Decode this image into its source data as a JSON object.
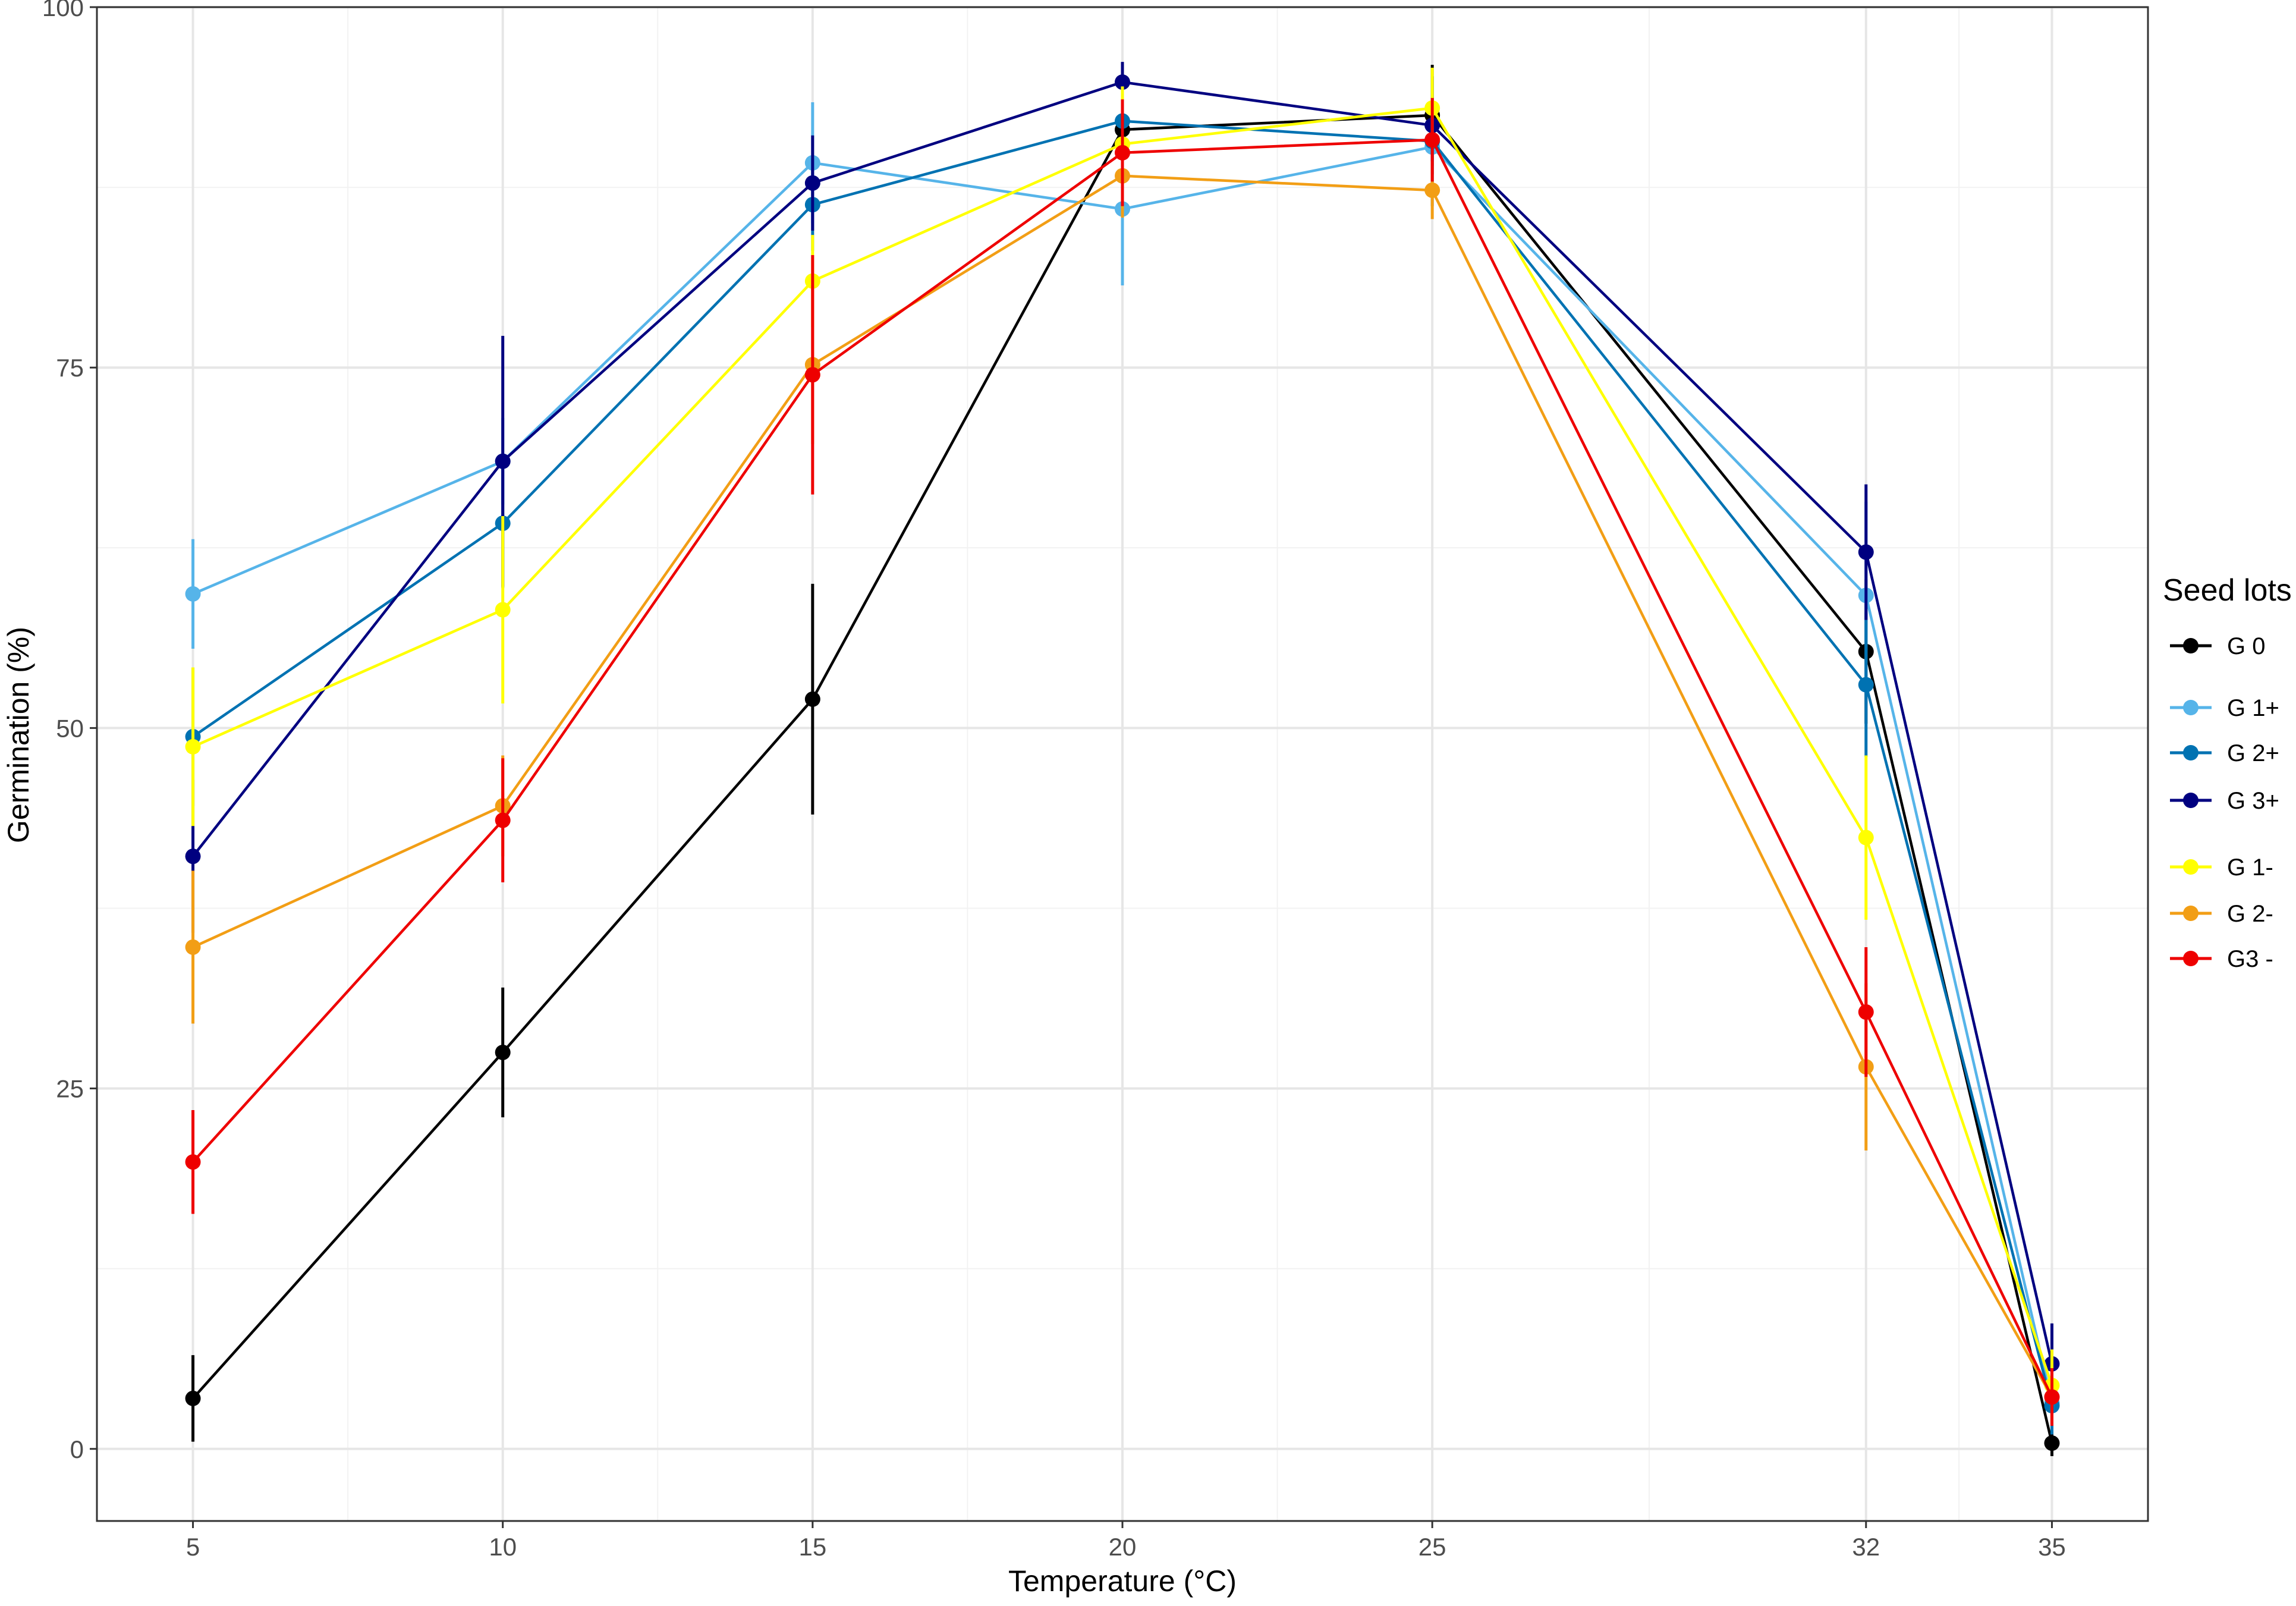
{
  "chart_data": {
    "type": "line",
    "title": "",
    "xlabel": "Temperature (°C)",
    "ylabel": "Germination (%)",
    "x": [
      5,
      10,
      15,
      20,
      25,
      32,
      35
    ],
    "x_ticks": [
      "5",
      "10",
      "15",
      "20",
      "25",
      "32",
      "35"
    ],
    "x_minor_ticks": [
      7.5,
      12.5,
      17.5,
      22.5,
      28.5,
      33.5
    ],
    "xlim": [
      3.45,
      36.55
    ],
    "y_ticks": [
      "0",
      "25",
      "50",
      "75",
      "100"
    ],
    "y_tick_values": [
      0,
      25,
      50,
      75,
      100
    ],
    "y_minor_ticks": [
      12.5,
      37.5,
      62.5,
      87.5
    ],
    "ylim": [
      -5,
      100
    ],
    "grid": true,
    "error_bars": true,
    "legend": {
      "title": "Seed lots",
      "position": "right",
      "groups": [
        [
          "G 0"
        ],
        [
          "G 1+",
          "G 2+",
          "G 3+"
        ],
        [
          "G 1-",
          "G 2-",
          "G3 -"
        ]
      ]
    },
    "series": [
      {
        "name": "G 0",
        "color": "#000000",
        "values": [
          3.5,
          27.5,
          52.0,
          91.5,
          92.5,
          55.3,
          0.4
        ],
        "error": [
          3.0,
          4.5,
          8.0,
          3.5,
          3.5,
          5.0,
          0.9
        ]
      },
      {
        "name": "G 1+",
        "color": "#56B4E9",
        "values": [
          59.3,
          68.5,
          89.2,
          86.0,
          90.3,
          59.2,
          3.2
        ],
        "error": [
          3.8,
          3.0,
          4.2,
          5.3,
          3.5,
          6.5,
          2.0
        ]
      },
      {
        "name": "G 2+",
        "color": "#0072B2",
        "values": [
          49.4,
          64.2,
          86.3,
          92.1,
          90.7,
          53.0,
          3.0
        ],
        "error": [
          4.8,
          4.5,
          3.2,
          3.0,
          4.5,
          5.0,
          2.0
        ]
      },
      {
        "name": "G 3+",
        "color": "#000080",
        "values": [
          41.1,
          68.5,
          87.8,
          94.8,
          91.8,
          62.2,
          5.9
        ],
        "error": [
          5.3,
          8.7,
          3.3,
          1.4,
          3.4,
          4.7,
          2.8
        ]
      },
      {
        "name": "G 1-",
        "color": "#FFFF00",
        "values": [
          48.7,
          58.2,
          81.0,
          90.5,
          93.0,
          42.4,
          4.4
        ],
        "error": [
          5.5,
          6.5,
          3.2,
          4.0,
          2.8,
          5.7,
          2.5
        ]
      },
      {
        "name": "G 2-",
        "color": "#F29E15",
        "values": [
          34.8,
          44.6,
          75.2,
          88.3,
          87.3,
          26.5,
          3.6
        ],
        "error": [
          5.3,
          3.5,
          5.5,
          2.9,
          2.0,
          5.8,
          2.0
        ]
      },
      {
        "name": "G3 -",
        "color": "#EE0000",
        "values": [
          19.9,
          43.6,
          74.5,
          89.9,
          90.8,
          30.3,
          3.6
        ],
        "error": [
          3.6,
          4.3,
          8.3,
          3.7,
          2.9,
          4.5,
          2.0
        ]
      }
    ]
  }
}
